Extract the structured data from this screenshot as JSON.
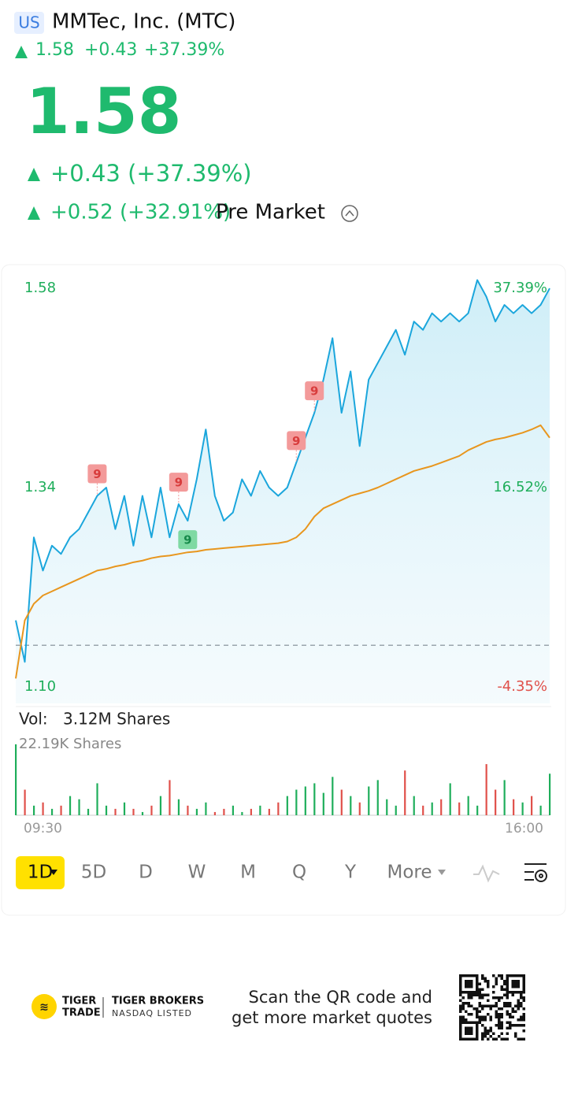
{
  "header": {
    "market": "US",
    "name": "MMTec, Inc. (MTC)",
    "price": "1.58",
    "change": "+0.43",
    "change_pct": "+37.39%"
  },
  "quote": {
    "price": "1.58",
    "change": "+0.43 (+37.39%)",
    "premarket_change": "+0.52 (+32.91%)",
    "premarket_label": "Pre Market"
  },
  "volume_info": {
    "label": "Vol:",
    "total": "3.12M Shares",
    "axis_max_label": "22.19K Shares"
  },
  "tabs": [
    "1D",
    "5D",
    "D",
    "W",
    "M",
    "Q",
    "Y",
    "More"
  ],
  "footer": {
    "logo_line1": "TIGER",
    "logo_line2": "TRADE",
    "brand": "TIGER BROKERS",
    "listing": "NASDAQ LISTED",
    "scan_line1": "Scan the QR code and",
    "scan_line2": "get more market quotes"
  },
  "chart_data": {
    "type": "line",
    "x": [
      "09:30",
      null,
      null,
      null,
      null,
      null,
      null,
      null,
      null,
      null,
      null,
      null,
      null,
      null,
      null,
      null,
      null,
      null,
      null,
      null,
      null,
      null,
      null,
      null,
      null,
      null,
      null,
      null,
      null,
      null,
      null,
      null,
      null,
      null,
      null,
      null,
      null,
      null,
      null,
      null,
      null,
      null,
      null,
      null,
      null,
      null,
      null,
      null,
      null,
      null,
      null,
      null,
      null,
      null,
      null,
      null,
      null,
      null,
      null,
      "16:00"
    ],
    "series": [
      {
        "color": "#1ba6dc",
        "values": [
          1.18,
          1.13,
          1.28,
          1.24,
          1.27,
          1.26,
          1.28,
          1.29,
          1.31,
          1.33,
          1.34,
          1.29,
          1.33,
          1.27,
          1.33,
          1.28,
          1.34,
          1.28,
          1.32,
          1.3,
          1.35,
          1.41,
          1.33,
          1.3,
          1.31,
          1.35,
          1.33,
          1.36,
          1.34,
          1.33,
          1.34,
          1.37,
          1.4,
          1.43,
          1.47,
          1.52,
          1.43,
          1.48,
          1.39,
          1.47,
          1.49,
          1.51,
          1.53,
          1.5,
          1.54,
          1.53,
          1.55,
          1.54,
          1.55,
          1.54,
          1.55,
          1.59,
          1.57,
          1.54,
          1.56,
          1.55,
          1.56,
          1.55,
          1.56,
          1.58
        ]
      },
      {
        "color": "#e8961e",
        "values": [
          1.11,
          1.18,
          1.2,
          1.21,
          1.215,
          1.22,
          1.225,
          1.23,
          1.235,
          1.24,
          1.242,
          1.245,
          1.247,
          1.25,
          1.252,
          1.255,
          1.257,
          1.258,
          1.26,
          1.262,
          1.263,
          1.265,
          1.266,
          1.267,
          1.268,
          1.269,
          1.27,
          1.271,
          1.272,
          1.273,
          1.275,
          1.28,
          1.29,
          1.305,
          1.315,
          1.32,
          1.325,
          1.33,
          1.333,
          1.336,
          1.34,
          1.345,
          1.35,
          1.355,
          1.36,
          1.363,
          1.366,
          1.37,
          1.374,
          1.378,
          1.385,
          1.39,
          1.395,
          1.398,
          1.4,
          1.403,
          1.406,
          1.41,
          1.415,
          1.4
        ]
      }
    ],
    "ylim": [
      1.08,
      1.6
    ],
    "yticks": [
      1.58,
      1.34,
      {
        "value": 1.1,
        "label": "1.10"
      }
    ],
    "y2lim": [
      -6.09,
      39.13
    ],
    "y2ticks": [
      {
        "value": 37.39,
        "label": "37.39%"
      },
      {
        "value": 16.52,
        "label": "16.52%"
      },
      {
        "value": -4.35,
        "label": "-4.35%"
      }
    ],
    "prev_close": 1.15,
    "annotations": [
      {
        "label": "9",
        "point": 9,
        "color": "#f39a9a",
        "placement": "above"
      },
      {
        "label": "9",
        "point": 18,
        "color": "#f39a9a",
        "placement": "above"
      },
      {
        "label": "9",
        "point": 19,
        "color": "#7fd9a3",
        "placement": "below"
      },
      {
        "label": "9",
        "point": 31,
        "color": "#f39a9a",
        "placement": "above"
      },
      {
        "label": "9",
        "point": 33,
        "color": "#f39a9a",
        "placement": "above"
      }
    ],
    "volume": {
      "values": [
        22.19,
        8,
        3,
        4,
        2,
        3,
        6,
        5,
        2,
        10,
        3,
        2,
        4,
        2,
        1,
        3,
        6,
        11,
        5,
        3,
        2,
        4,
        1,
        2,
        3,
        1,
        2,
        3,
        2,
        4,
        6,
        8,
        9,
        10,
        7,
        12,
        8,
        6,
        4,
        9,
        11,
        5,
        3,
        14,
        6,
        3,
        4,
        5,
        10,
        4,
        6,
        3,
        16,
        8,
        11,
        5,
        4,
        6,
        3,
        13
      ],
      "ylim": [
        0,
        22.19
      ],
      "up_color": "#1fae5b",
      "down_color": "#e0504a"
    }
  }
}
